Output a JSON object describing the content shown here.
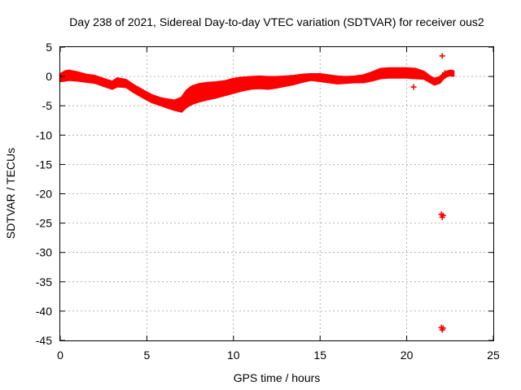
{
  "chart_data": {
    "type": "scatter",
    "title": "Day 238 of 2021, Sidereal Day-to-day VTEC variation (SDTVAR) for receiver ous2",
    "xlabel": "GPS time / hours",
    "ylabel": "SDTVAR / TECUs",
    "xlim": [
      0,
      25
    ],
    "ylim": [
      -45,
      5
    ],
    "x_ticks": [
      0,
      5,
      10,
      15,
      20,
      25
    ],
    "y_ticks": [
      5,
      0,
      -5,
      -10,
      -15,
      -20,
      -25,
      -30,
      -35,
      -40,
      -45
    ],
    "x_tick_labels": [
      "0",
      "5",
      "10",
      "15",
      "20",
      "25"
    ],
    "y_tick_labels": [
      "5",
      "0",
      "-5",
      "-10",
      "-15",
      "-20",
      "-25",
      "-30",
      "-35",
      "-40",
      "-45"
    ],
    "grid": true,
    "marker": "+",
    "series": [
      {
        "name": "SDTVAR",
        "color": "#ff0000",
        "band_x": [
          0,
          0.3,
          0.5,
          1.0,
          1.5,
          2.0,
          2.5,
          3.0,
          3.3,
          3.8,
          4.2,
          4.8,
          5.3,
          5.8,
          6.2,
          6.6,
          7.0,
          7.3,
          7.6,
          8.0,
          8.5,
          9.0,
          9.5,
          10.0,
          10.5,
          11.0,
          11.5,
          12.0,
          12.5,
          13.0,
          13.5,
          14.0,
          14.5,
          15.0,
          15.5,
          16.0,
          16.5,
          17.0,
          17.5,
          18.0,
          18.5,
          19.0,
          19.5,
          20.0,
          20.5,
          21.0,
          21.3,
          21.6,
          21.9,
          22.1,
          22.3,
          22.5,
          22.7
        ],
        "band_center": [
          -0.2,
          0.1,
          0.2,
          0.0,
          -0.3,
          -0.5,
          -1.0,
          -1.5,
          -1.0,
          -1.2,
          -2.0,
          -3.0,
          -3.8,
          -4.3,
          -4.6,
          -4.9,
          -4.8,
          -3.8,
          -3.2,
          -2.8,
          -2.5,
          -2.3,
          -2.0,
          -1.6,
          -1.3,
          -1.1,
          -1.0,
          -1.1,
          -1.0,
          -0.8,
          -0.6,
          -0.3,
          -0.1,
          -0.2,
          -0.4,
          -0.6,
          -0.6,
          -0.5,
          -0.4,
          0.0,
          0.5,
          0.6,
          0.6,
          0.6,
          0.5,
          0.2,
          -0.4,
          -0.9,
          -0.6,
          0.0,
          0.4,
          0.6,
          0.5
        ],
        "band_halfwidth": [
          0.6,
          0.8,
          0.8,
          0.7,
          0.6,
          0.6,
          0.6,
          0.6,
          0.7,
          0.6,
          0.6,
          0.6,
          0.6,
          0.6,
          0.7,
          0.8,
          1.2,
          1.4,
          1.5,
          1.5,
          1.4,
          1.3,
          1.2,
          1.2,
          1.1,
          1.0,
          1.0,
          1.0,
          0.9,
          0.8,
          0.7,
          0.6,
          0.5,
          0.6,
          0.6,
          0.6,
          0.5,
          0.5,
          0.6,
          0.7,
          0.8,
          0.8,
          0.8,
          0.8,
          0.8,
          0.6,
          0.5,
          0.5,
          0.5,
          0.4,
          0.4,
          0.4,
          0.4
        ],
        "outliers": [
          {
            "x": 22.05,
            "y": 3.5
          },
          {
            "x": 22.0,
            "y": -23.5
          },
          {
            "x": 22.05,
            "y": -24.0
          },
          {
            "x": 22.1,
            "y": -23.7
          },
          {
            "x": 22.0,
            "y": -42.8
          },
          {
            "x": 22.05,
            "y": -43.2
          },
          {
            "x": 22.1,
            "y": -42.9
          },
          {
            "x": 20.4,
            "y": -1.8
          },
          {
            "x": 21.9,
            "y": -0.8
          },
          {
            "x": 22.2,
            "y": 0.6
          }
        ]
      }
    ]
  }
}
